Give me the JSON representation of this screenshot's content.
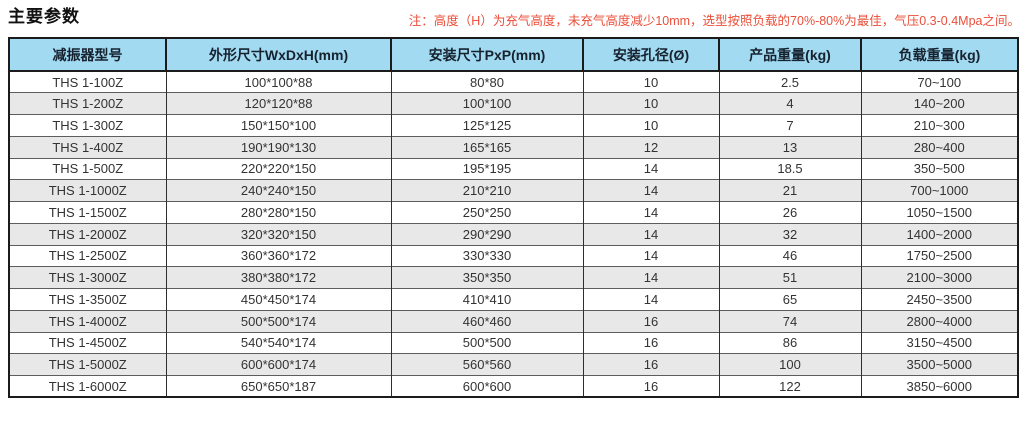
{
  "page": {
    "title": "主要参数",
    "note": "注：高度（H）为充气高度，未充气高度减少10mm，选型按照负载的70%-80%为最佳，气压0.3-0.4Mpa之间。"
  },
  "colors": {
    "header_bg": "#a2daf2",
    "header_text": "#16222e",
    "note_red": "#ea4f3a",
    "row_alt_bg": "#e8e8e8",
    "body_text": "#333333",
    "border_dark": "#1b1b1b",
    "border_row": "#5d5d5d"
  },
  "table": {
    "headers": [
      "减振器型号",
      "外形尺寸WxDxH(mm)",
      "安装尺寸PxP(mm)",
      "安装孔径(Ø)",
      "产品重量(kg)",
      "负载重量(kg)"
    ],
    "rows": [
      [
        "THS 1-100Z",
        "100*100*88",
        "80*80",
        "10",
        "2.5",
        "70~100"
      ],
      [
        "THS 1-200Z",
        "120*120*88",
        "100*100",
        "10",
        "4",
        "140~200"
      ],
      [
        "THS 1-300Z",
        "150*150*100",
        "125*125",
        "10",
        "7",
        "210~300"
      ],
      [
        "THS 1-400Z",
        "190*190*130",
        "165*165",
        "12",
        "13",
        "280~400"
      ],
      [
        "THS 1-500Z",
        "220*220*150",
        "195*195",
        "14",
        "18.5",
        "350~500"
      ],
      [
        "THS 1-1000Z",
        "240*240*150",
        "210*210",
        "14",
        "21",
        "700~1000"
      ],
      [
        "THS 1-1500Z",
        "280*280*150",
        "250*250",
        "14",
        "26",
        "1050~1500"
      ],
      [
        "THS 1-2000Z",
        "320*320*150",
        "290*290",
        "14",
        "32",
        "1400~2000"
      ],
      [
        "THS 1-2500Z",
        "360*360*172",
        "330*330",
        "14",
        "46",
        "1750~2500"
      ],
      [
        "THS 1-3000Z",
        "380*380*172",
        "350*350",
        "14",
        "51",
        "2100~3000"
      ],
      [
        "THS 1-3500Z",
        "450*450*174",
        "410*410",
        "14",
        "65",
        "2450~3500"
      ],
      [
        "THS 1-4000Z",
        "500*500*174",
        "460*460",
        "16",
        "74",
        "2800~4000"
      ],
      [
        "THS 1-4500Z",
        "540*540*174",
        "500*500",
        "16",
        "86",
        "3150~4500"
      ],
      [
        "THS 1-5000Z",
        "600*600*174",
        "560*560",
        "16",
        "100",
        "3500~5000"
      ],
      [
        "THS 1-6000Z",
        "650*650*187",
        "600*600",
        "16",
        "122",
        "3850~6000"
      ]
    ]
  }
}
